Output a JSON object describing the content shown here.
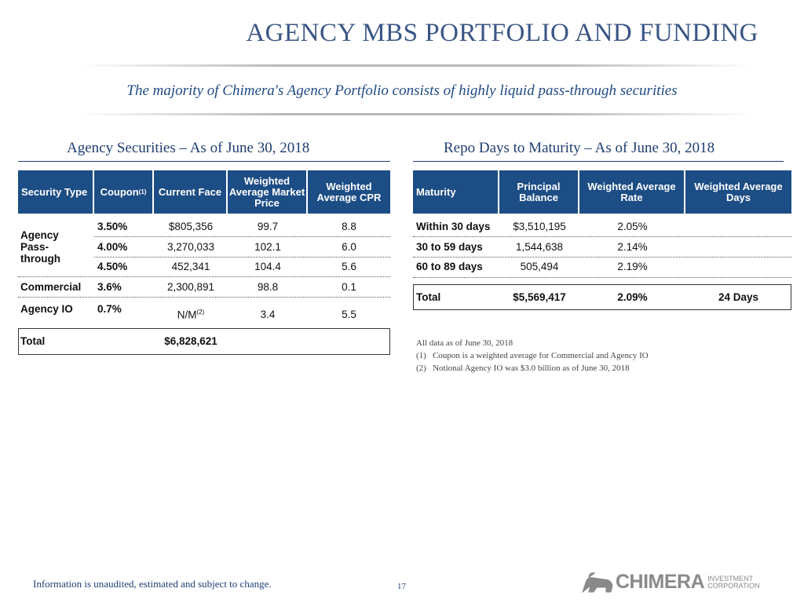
{
  "title": "AGENCY MBS PORTFOLIO AND FUNDING",
  "subtitle": "The majority of Chimera's Agency Portfolio consists of highly liquid pass-through securities",
  "left": {
    "heading": "Agency Securities – As of June 30, 2018",
    "headers": [
      "Security Type",
      "Coupon",
      "Current Face",
      "Weighted Average Market Price",
      "Weighted Average CPR"
    ],
    "coupon_sup": "(1)",
    "group_label": "Agency Pass-through",
    "rows": [
      {
        "coupon": "3.50%",
        "face": "$805,356",
        "price": "99.7",
        "cpr": "8.8"
      },
      {
        "coupon": "4.00%",
        "face": "3,270,033",
        "price": "102.1",
        "cpr": "6.0"
      },
      {
        "coupon": "4.50%",
        "face": "452,341",
        "price": "104.4",
        "cpr": "5.6"
      },
      {
        "type": "Commercial",
        "coupon": "3.6%",
        "face": "2,300,891",
        "price": "98.8",
        "cpr": "0.1"
      },
      {
        "type": "Agency IO",
        "coupon": "0.7%",
        "face": "N/M",
        "face_sup": "(2)",
        "price": "3.4",
        "cpr": "5.5"
      }
    ],
    "total": {
      "label": "Total",
      "face": "$6,828,621"
    }
  },
  "right": {
    "heading": "Repo Days to Maturity – As of June 30, 2018",
    "headers": [
      "Maturity",
      "Principal Balance",
      "Weighted Average Rate",
      "Weighted Average Days"
    ],
    "rows": [
      {
        "maturity": "Within 30 days",
        "balance": "$3,510,195",
        "rate": "2.05%"
      },
      {
        "maturity": "30 to 59 days",
        "balance": "1,544,638",
        "rate": "2.14%"
      },
      {
        "maturity": "60 to 89 days",
        "balance": "505,494",
        "rate": "2.19%"
      }
    ],
    "total": {
      "label": "Total",
      "balance": "$5,569,417",
      "rate": "2.09%",
      "days": "24 Days"
    }
  },
  "notes": {
    "asof": "All data as of June 30, 2018",
    "n1_num": "(1)",
    "n1": "Coupon is a weighted average for Commercial and Agency IO",
    "n2_num": "(2)",
    "n2": "Notional Agency IO was $3.0 billion as of June 30, 2018"
  },
  "footer": {
    "disclaimer": "Information is unaudited, estimated and subject to change.",
    "page": "17",
    "logo_text": "CHIMERA",
    "logo_sub1": "INVESTMENT",
    "logo_sub2": "CORPORATION"
  }
}
